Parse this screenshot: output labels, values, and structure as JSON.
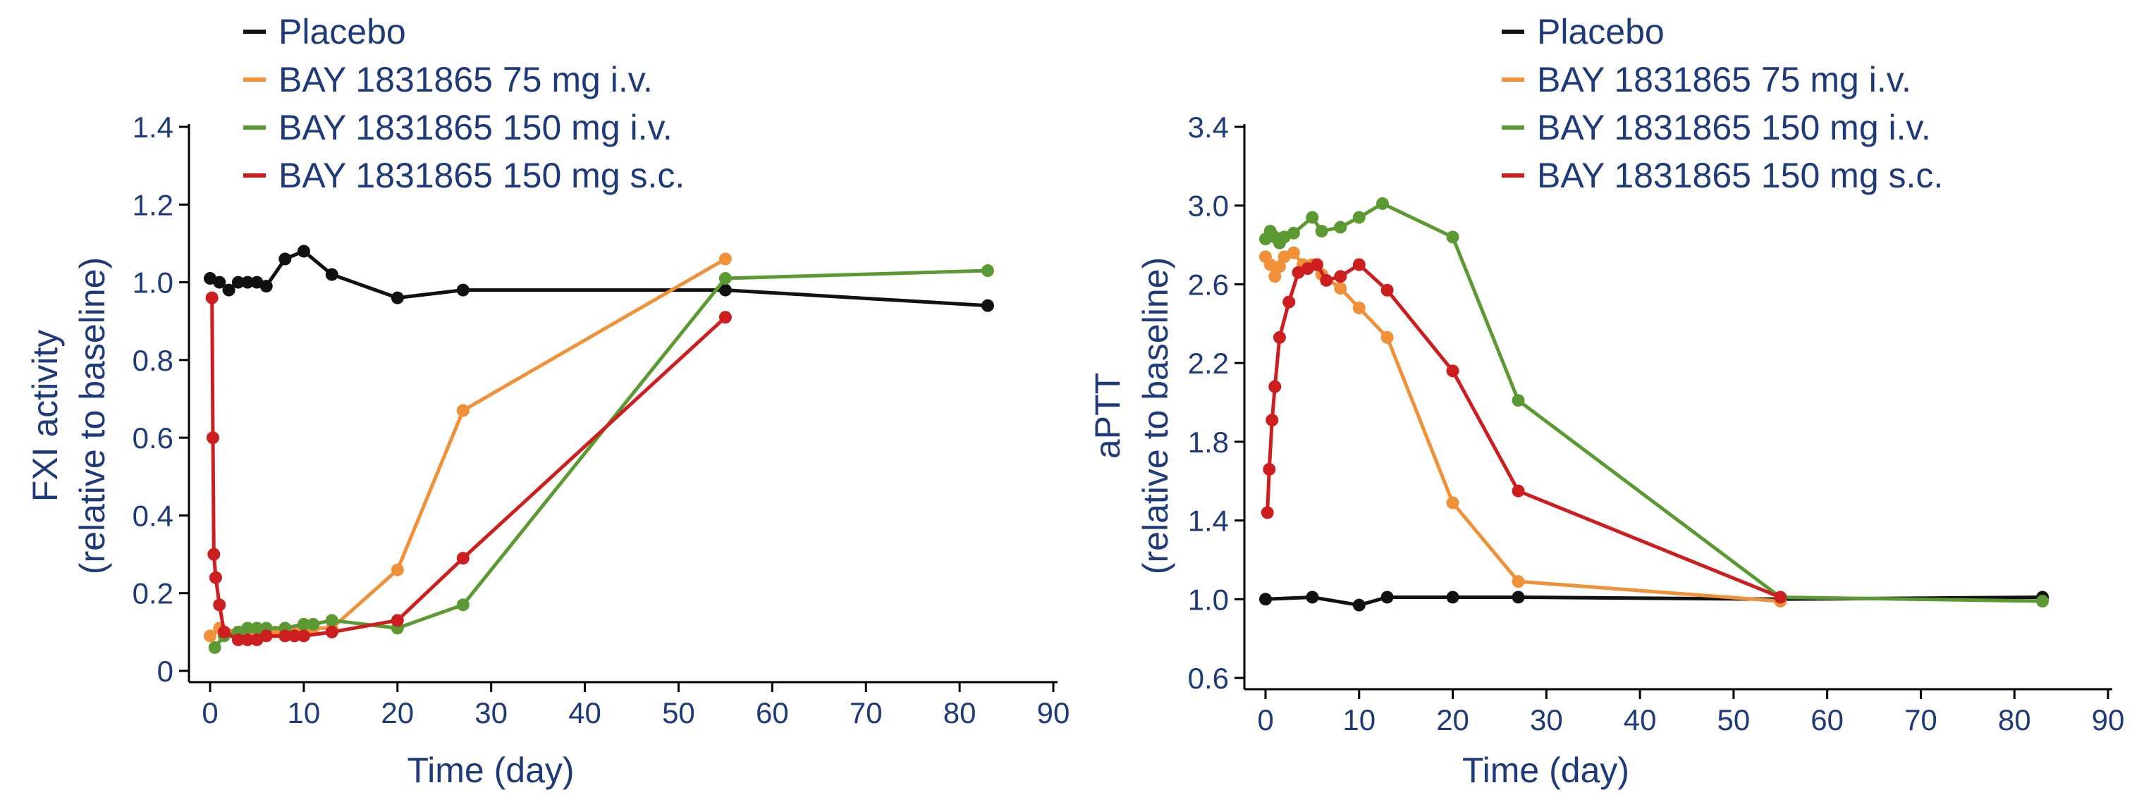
{
  "chart_data": [
    {
      "type": "line",
      "xlabel": "Time (day)",
      "ylabel": [
        "FXI activity",
        "(relative to baseline)"
      ],
      "xlim": [
        0,
        90
      ],
      "ylim": [
        0,
        1.4
      ],
      "xticks": [
        "0",
        "10",
        "20",
        "30",
        "40",
        "50",
        "60",
        "70",
        "80",
        "90"
      ],
      "yticks": [
        "0",
        "0.2",
        "0.4",
        "0.6",
        "0.8",
        "1.0",
        "1.2",
        "1.4"
      ],
      "legend_position": "top",
      "series": [
        {
          "name": "Placebo",
          "color": "#111111",
          "points": [
            [
              0,
              1.01
            ],
            [
              1,
              1.0
            ],
            [
              2,
              0.98
            ],
            [
              3,
              1.0
            ],
            [
              4,
              1.0
            ],
            [
              5,
              1.0
            ],
            [
              6,
              0.99
            ],
            [
              8,
              1.06
            ],
            [
              10,
              1.08
            ],
            [
              13,
              1.02
            ],
            [
              20,
              0.96
            ],
            [
              27,
              0.98
            ],
            [
              55,
              0.98
            ],
            [
              83,
              0.94
            ]
          ]
        },
        {
          "name": "BAY 1831865 75 mg i.v.",
          "color": "#f0913a",
          "points": [
            [
              0,
              0.09
            ],
            [
              1,
              0.11
            ],
            [
              3,
              0.1
            ],
            [
              5,
              0.1
            ],
            [
              7,
              0.1
            ],
            [
              9,
              0.1
            ],
            [
              11,
              0.11
            ],
            [
              13,
              0.11
            ],
            [
              20,
              0.26
            ],
            [
              27,
              0.67
            ],
            [
              55,
              1.06
            ]
          ]
        },
        {
          "name": "BAY 1831865 150 mg i.v.",
          "color": "#5b9a32",
          "points": [
            [
              0.5,
              0.06
            ],
            [
              1.5,
              0.09
            ],
            [
              3,
              0.1
            ],
            [
              4,
              0.11
            ],
            [
              5,
              0.11
            ],
            [
              6,
              0.11
            ],
            [
              8,
              0.11
            ],
            [
              10,
              0.12
            ],
            [
              11,
              0.12
            ],
            [
              13,
              0.13
            ],
            [
              20,
              0.11
            ],
            [
              27,
              0.17
            ],
            [
              55,
              1.01
            ],
            [
              83,
              1.03
            ]
          ]
        },
        {
          "name": "BAY 1831865 150 mg s.c.",
          "color": "#cc1e1e",
          "points": [
            [
              0.2,
              0.96
            ],
            [
              0.3,
              0.6
            ],
            [
              0.4,
              0.3
            ],
            [
              0.6,
              0.24
            ],
            [
              1,
              0.17
            ],
            [
              1.5,
              0.1
            ],
            [
              3,
              0.08
            ],
            [
              4,
              0.08
            ],
            [
              5,
              0.08
            ],
            [
              6,
              0.09
            ],
            [
              8,
              0.09
            ],
            [
              9,
              0.09
            ],
            [
              10,
              0.09
            ],
            [
              13,
              0.1
            ],
            [
              20,
              0.13
            ],
            [
              27,
              0.29
            ],
            [
              55,
              0.91
            ]
          ]
        }
      ]
    },
    {
      "type": "line",
      "xlabel": "Time (day)",
      "ylabel": [
        "aPTT",
        "(relative to baseline)"
      ],
      "xlim": [
        0,
        90
      ],
      "ylim": [
        0.6,
        3.4
      ],
      "xticks": [
        "0",
        "10",
        "20",
        "30",
        "40",
        "50",
        "60",
        "70",
        "80",
        "90"
      ],
      "yticks": [
        "0.6",
        "1.0",
        "1.4",
        "1.8",
        "2.2",
        "2.6",
        "3.0",
        "3.4"
      ],
      "legend_position": "top",
      "series": [
        {
          "name": "Placebo",
          "color": "#111111",
          "points": [
            [
              0,
              1.0
            ],
            [
              5,
              1.01
            ],
            [
              10,
              0.97
            ],
            [
              13,
              1.01
            ],
            [
              20,
              1.01
            ],
            [
              27,
              1.01
            ],
            [
              55,
              1.0
            ],
            [
              83,
              1.01
            ]
          ]
        },
        {
          "name": "BAY 1831865 75 mg i.v.",
          "color": "#f0913a",
          "points": [
            [
              0,
              2.74
            ],
            [
              0.5,
              2.7
            ],
            [
              1,
              2.64
            ],
            [
              1.5,
              2.69
            ],
            [
              2,
              2.74
            ],
            [
              3,
              2.76
            ],
            [
              4,
              2.7
            ],
            [
              5,
              2.7
            ],
            [
              6,
              2.65
            ],
            [
              8,
              2.58
            ],
            [
              10,
              2.48
            ],
            [
              13,
              2.33
            ],
            [
              20,
              1.49
            ],
            [
              27,
              1.09
            ],
            [
              55,
              0.99
            ]
          ]
        },
        {
          "name": "BAY 1831865 150 mg i.v.",
          "color": "#5b9a32",
          "points": [
            [
              0,
              2.83
            ],
            [
              0.5,
              2.87
            ],
            [
              1,
              2.84
            ],
            [
              1.5,
              2.81
            ],
            [
              2,
              2.84
            ],
            [
              3,
              2.86
            ],
            [
              5,
              2.94
            ],
            [
              6,
              2.87
            ],
            [
              8,
              2.89
            ],
            [
              10,
              2.94
            ],
            [
              12.5,
              3.01
            ],
            [
              20,
              2.84
            ],
            [
              27,
              2.01
            ],
            [
              55,
              1.01
            ],
            [
              83,
              0.99
            ]
          ]
        },
        {
          "name": "BAY 1831865 150 mg s.c.",
          "color": "#cc1e1e",
          "points": [
            [
              0.2,
              1.44
            ],
            [
              0.4,
              1.66
            ],
            [
              0.7,
              1.91
            ],
            [
              1,
              2.08
            ],
            [
              1.5,
              2.33
            ],
            [
              2.5,
              2.51
            ],
            [
              3.5,
              2.66
            ],
            [
              4.5,
              2.68
            ],
            [
              5.5,
              2.7
            ],
            [
              6.5,
              2.62
            ],
            [
              8,
              2.64
            ],
            [
              10,
              2.7
            ],
            [
              13,
              2.57
            ],
            [
              20,
              2.16
            ],
            [
              27,
              1.55
            ],
            [
              55,
              1.01
            ]
          ]
        }
      ]
    }
  ]
}
